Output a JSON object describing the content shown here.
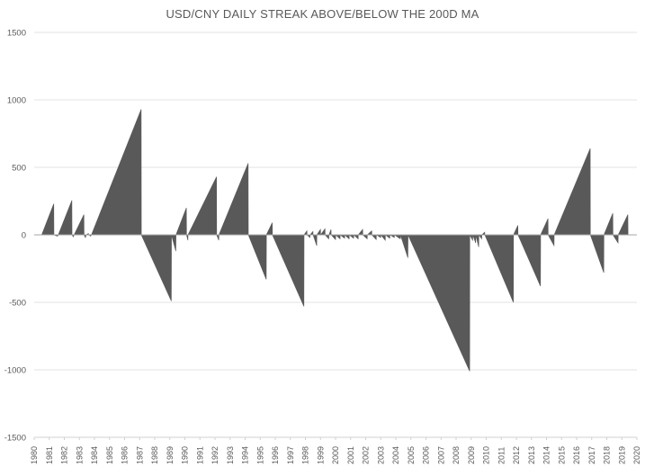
{
  "chart_data": {
    "type": "area",
    "title": "USD/CNY DAILY STREAK ABOVE/BELOW THE 200D MA",
    "xlabel": "",
    "ylabel": "",
    "ylim": [
      -1500,
      1500
    ],
    "yticks": [
      1500,
      1000,
      500,
      0,
      -500,
      -1000,
      -1500
    ],
    "xlim": [
      1980,
      2020
    ],
    "xticks": [
      "1980",
      "1981",
      "1982",
      "1983",
      "1984",
      "1985",
      "1986",
      "1987",
      "1988",
      "1989",
      "1990",
      "1991",
      "1992",
      "1993",
      "1994",
      "1995",
      "1996",
      "1997",
      "1998",
      "1999",
      "2000",
      "2001",
      "2002",
      "2003",
      "2004",
      "2005",
      "2006",
      "2007",
      "2008",
      "2009",
      "2010",
      "2011",
      "2012",
      "2013",
      "2014",
      "2015",
      "2016",
      "2017",
      "2018",
      "2019",
      "2020"
    ],
    "grid": true,
    "legend": "none",
    "fill_color": "#595959",
    "series": [
      {
        "points": [
          [
            1980.5,
            0
          ],
          [
            1981.3,
            230
          ],
          [
            1981.31,
            0
          ],
          [
            1981.55,
            -10
          ],
          [
            1981.6,
            0
          ],
          [
            1982.5,
            255
          ],
          [
            1982.51,
            0
          ],
          [
            1982.6,
            -15
          ],
          [
            1982.65,
            0
          ],
          [
            1983.3,
            150
          ],
          [
            1983.31,
            0
          ],
          [
            1983.4,
            -20
          ],
          [
            1983.45,
            0
          ],
          [
            1983.6,
            10
          ],
          [
            1983.61,
            0
          ],
          [
            1983.75,
            -10
          ],
          [
            1983.8,
            0
          ],
          [
            1987.1,
            930
          ],
          [
            1987.11,
            0
          ],
          [
            1989.1,
            -490
          ],
          [
            1989.11,
            0
          ],
          [
            1989.4,
            -120
          ],
          [
            1989.41,
            0
          ],
          [
            1990.1,
            200
          ],
          [
            1990.11,
            0
          ],
          [
            1990.2,
            -40
          ],
          [
            1990.21,
            0
          ],
          [
            1992.1,
            430
          ],
          [
            1992.11,
            0
          ],
          [
            1992.25,
            -40
          ],
          [
            1992.26,
            0
          ],
          [
            1994.2,
            530
          ],
          [
            1994.21,
            0
          ],
          [
            1995.4,
            -330
          ],
          [
            1995.41,
            0
          ],
          [
            1995.8,
            90
          ],
          [
            1995.81,
            0
          ],
          [
            1997.9,
            -530
          ],
          [
            1997.91,
            0
          ],
          [
            1998.1,
            30
          ],
          [
            1998.11,
            0
          ],
          [
            1998.3,
            -20
          ],
          [
            1998.31,
            0
          ],
          [
            1998.5,
            25
          ],
          [
            1998.51,
            0
          ],
          [
            1998.75,
            -80
          ],
          [
            1998.76,
            0
          ],
          [
            1999.0,
            40
          ],
          [
            1999.01,
            0
          ],
          [
            1999.3,
            45
          ],
          [
            1999.31,
            0
          ],
          [
            1999.55,
            -30
          ],
          [
            1999.56,
            0
          ],
          [
            1999.7,
            40
          ],
          [
            1999.71,
            0
          ],
          [
            2000.0,
            -35
          ],
          [
            2000.01,
            0
          ],
          [
            2000.3,
            -30
          ],
          [
            2000.31,
            0
          ],
          [
            2000.6,
            -25
          ],
          [
            2000.61,
            0
          ],
          [
            2000.9,
            -30
          ],
          [
            2000.91,
            0
          ],
          [
            2001.2,
            -25
          ],
          [
            2001.21,
            0
          ],
          [
            2001.5,
            -30
          ],
          [
            2001.51,
            0
          ],
          [
            2001.8,
            40
          ],
          [
            2001.81,
            0
          ],
          [
            2002.1,
            -30
          ],
          [
            2002.11,
            0
          ],
          [
            2002.4,
            30
          ],
          [
            2002.41,
            0
          ],
          [
            2002.7,
            -35
          ],
          [
            2002.71,
            0
          ],
          [
            2003.0,
            -20
          ],
          [
            2003.01,
            0
          ],
          [
            2003.3,
            -40
          ],
          [
            2003.31,
            0
          ],
          [
            2003.6,
            -25
          ],
          [
            2003.61,
            0
          ],
          [
            2003.9,
            -20
          ],
          [
            2003.91,
            0
          ],
          [
            2004.3,
            -30
          ],
          [
            2004.31,
            0
          ],
          [
            2004.8,
            -170
          ],
          [
            2004.81,
            0
          ],
          [
            2008.9,
            -1010
          ],
          [
            2008.91,
            0
          ],
          [
            2009.1,
            -40
          ],
          [
            2009.11,
            0
          ],
          [
            2009.3,
            -60
          ],
          [
            2009.31,
            0
          ],
          [
            2009.5,
            -90
          ],
          [
            2009.51,
            0
          ],
          [
            2009.7,
            -30
          ],
          [
            2009.71,
            0
          ],
          [
            2009.9,
            20
          ],
          [
            2009.91,
            0
          ],
          [
            2011.8,
            -500
          ],
          [
            2011.81,
            0
          ],
          [
            2012.1,
            70
          ],
          [
            2012.11,
            0
          ],
          [
            2013.6,
            -380
          ],
          [
            2013.61,
            0
          ],
          [
            2014.1,
            120
          ],
          [
            2014.11,
            0
          ],
          [
            2014.5,
            -80
          ],
          [
            2014.51,
            0
          ],
          [
            2016.9,
            640
          ],
          [
            2016.91,
            0
          ],
          [
            2017.8,
            -280
          ],
          [
            2017.81,
            0
          ],
          [
            2018.4,
            160
          ],
          [
            2018.41,
            0
          ],
          [
            2018.75,
            -60
          ],
          [
            2018.76,
            0
          ],
          [
            2019.4,
            150
          ],
          [
            2019.41,
            0
          ]
        ]
      }
    ]
  }
}
